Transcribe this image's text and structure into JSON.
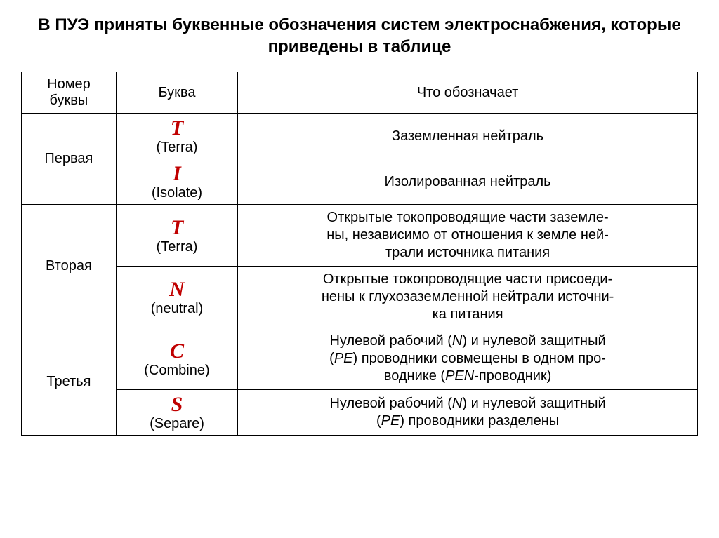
{
  "title": "В ПУЭ приняты буквенные обозначения систем электроснабжения, которые приведены в таблице",
  "headers": {
    "col1": "Номер буквы",
    "col2": "Буква",
    "col3": "Что обозначает"
  },
  "groups": [
    {
      "label": "Первая",
      "rows": [
        {
          "symbol": "T",
          "origin": "(Terra)",
          "description": "Заземленная нейтраль"
        },
        {
          "symbol": "I",
          "origin": "(Isolate)",
          "description": "Изолированная нейтраль"
        }
      ]
    },
    {
      "label": "Вторая",
      "rows": [
        {
          "symbol": "T",
          "origin": "(Terra)",
          "description_html": "Открытые токопроводящие части заземле-<br>ны, независимо от отношения к земле ней-<br>трали источника питания"
        },
        {
          "symbol": "N",
          "origin": "(neutral)",
          "description_html": "Открытые токопроводящие части присоеди-<br>нены к глухозаземленной нейтрали источни-<br>ка питания"
        }
      ]
    },
    {
      "label": "Третья",
      "rows": [
        {
          "symbol": "C",
          "origin": "(Combine)",
          "description_html": "Нулевой рабочий (<span class=\"italic\">N</span>) и нулевой защитный<br>(<span class=\"italic\">PE</span>) проводники совмещены в одном про-<br>воднике (<span class=\"italic\">PEN</span>-проводник)"
        },
        {
          "symbol": "S",
          "origin": "(Separe)",
          "description_html": "Нулевой рабочий (<span class=\"italic\">N</span>) и нулевой защитный<br>(<span class=\"italic\">PE</span>) проводники разделены"
        }
      ]
    }
  ],
  "styles": {
    "symbol_color": "#c00000",
    "text_color": "#000000",
    "border_color": "#000000",
    "background_color": "#ffffff",
    "title_fontsize": 24,
    "cell_fontsize": 20,
    "symbol_fontsize": 30,
    "col_widths": [
      "14%",
      "18%",
      "68%"
    ]
  }
}
